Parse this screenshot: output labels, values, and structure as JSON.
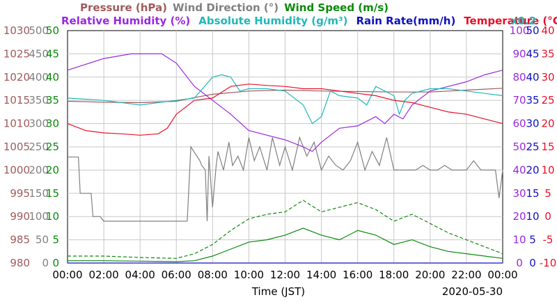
{
  "chart_data": {
    "type": "line",
    "legend_row1": [
      {
        "key": "pressure",
        "label": "Pressure (hPa)",
        "color": "#a05a5a"
      },
      {
        "key": "wind_direction",
        "label": "Wind Direction (°)",
        "color": "#808080"
      },
      {
        "key": "wind_speed",
        "label": "Wind Speed (m/s)",
        "color": "#0a8a0a"
      }
    ],
    "legend_row2": [
      {
        "key": "relative_humidity",
        "label": "Relative Humidity (%)",
        "color": "#9a28e0"
      },
      {
        "key": "absolute_humidity",
        "label": "Absolute Humidity (g/m³)",
        "color": "#20b8b8"
      },
      {
        "key": "rain_rate",
        "label": "Rain Rate(mm/h)",
        "color": "#1010c0"
      },
      {
        "key": "temperature",
        "label": "Temperature (°C)",
        "color": "#e8102a"
      }
    ],
    "abs_humidity_scale": "x0.2",
    "xlabel": "Time (JST)",
    "date": "2020-05-30",
    "x_ticks": [
      "00:00",
      "02:00",
      "04:00",
      "06:00",
      "08:00",
      "10:00",
      "12:00",
      "14:00",
      "16:00",
      "18:00",
      "20:00",
      "22:00",
      "00:00"
    ],
    "x_range_hours": [
      0,
      24
    ],
    "grid": true,
    "axes": {
      "pressure": {
        "ticks": [
          "980",
          "985",
          "990",
          "995",
          "1000",
          "1005",
          "1010",
          "1015",
          "1020",
          "1025",
          "1030"
        ],
        "range": [
          980,
          1030
        ],
        "color": "#a05a5a"
      },
      "wind_direction": {
        "ticks": [
          "0",
          "50",
          "100",
          "150",
          "200",
          "250",
          "300",
          "350",
          "400",
          "450",
          "500"
        ],
        "range": [
          0,
          500
        ],
        "color": "#808080"
      },
      "wind_speed": {
        "ticks": [
          "0",
          "5",
          "10",
          "15",
          "20",
          "25",
          "30",
          "35",
          "40",
          "45",
          "50"
        ],
        "range": [
          0,
          50
        ],
        "color": "#0a8a0a"
      },
      "relative_humidity": {
        "ticks": [
          "0",
          "10",
          "20",
          "30",
          "40",
          "50",
          "60",
          "70",
          "80",
          "90",
          "100"
        ],
        "range": [
          0,
          100
        ],
        "color": "#9a28e0"
      },
      "rain_rate": {
        "ticks": [
          "0",
          "5",
          "10",
          "15",
          "20",
          "25",
          "30",
          "35",
          "40",
          "45",
          "50"
        ],
        "range": [
          0,
          50
        ],
        "color": "#1010c0"
      },
      "temperature": {
        "ticks": [
          "-10",
          "-5",
          "0",
          "5",
          "10",
          "15",
          "20",
          "25",
          "30",
          "35",
          "40"
        ],
        "range": [
          -10,
          40
        ],
        "color": "#e8102a"
      }
    },
    "series": [
      {
        "key": "pressure",
        "color": "#a05a5a",
        "x": [
          0,
          2,
          4,
          6,
          7,
          8,
          10,
          12,
          14,
          16,
          18,
          20,
          22,
          24
        ],
        "y": [
          1014.8,
          1014.6,
          1014.5,
          1014.8,
          1015.6,
          1016.3,
          1017,
          1017.2,
          1017,
          1016.9,
          1016.8,
          1016.8,
          1017.2,
          1017.6
        ]
      },
      {
        "key": "wind_direction",
        "color": "#808080",
        "x": [
          0,
          0.6,
          0.7,
          1.3,
          1.4,
          1.8,
          2,
          4,
          6,
          6.6,
          6.8,
          7.3,
          7.4,
          7.6,
          7.7,
          7.8,
          8.0,
          8.2,
          8.3,
          8.6,
          8.9,
          9.1,
          9.4,
          9.7,
          10.0,
          10.3,
          10.6,
          11.0,
          11.3,
          11.7,
          12.0,
          12.4,
          12.8,
          13.2,
          13.6,
          14.0,
          14.4,
          14.8,
          15.2,
          15.6,
          16.0,
          16.4,
          16.8,
          17.2,
          17.6,
          18.0,
          18.4,
          18.8,
          19.2,
          19.6,
          20.0,
          20.4,
          20.8,
          21.2,
          21.6,
          22.0,
          22.4,
          22.8,
          23.2,
          23.6,
          23.8,
          24
        ],
        "y": [
          228,
          228,
          150,
          150,
          100,
          100,
          90,
          90,
          90,
          90,
          250,
          220,
          210,
          200,
          90,
          230,
          120,
          210,
          240,
          200,
          260,
          210,
          230,
          200,
          270,
          220,
          250,
          200,
          270,
          210,
          250,
          200,
          270,
          230,
          260,
          200,
          230,
          210,
          200,
          220,
          260,
          200,
          240,
          210,
          270,
          200,
          200,
          200,
          200,
          210,
          200,
          200,
          210,
          200,
          200,
          200,
          220,
          200,
          200,
          200,
          140,
          200
        ]
      },
      {
        "key": "wind_speed",
        "color": "#0a8a0a",
        "x": [
          0,
          2,
          4,
          6,
          7,
          8,
          9,
          10,
          11,
          12,
          13,
          14,
          15,
          16,
          17,
          18,
          19,
          20,
          21,
          22,
          23,
          24
        ],
        "y": [
          0.5,
          0.5,
          0.4,
          0.3,
          0.5,
          1.5,
          3,
          4.5,
          5,
          6,
          7.5,
          6,
          5,
          7,
          6,
          4,
          5,
          3.5,
          2.5,
          2,
          1.5,
          1
        ]
      },
      {
        "key": "wind_gust",
        "color": "#0a8a0a",
        "dashed": true,
        "x": [
          0,
          2,
          4,
          6,
          7,
          8,
          9,
          10,
          11,
          12,
          13,
          14,
          15,
          16,
          17,
          18,
          19,
          20,
          21,
          22,
          23,
          24
        ],
        "y": [
          1.5,
          1.5,
          1.2,
          1,
          2,
          4,
          7,
          9.5,
          10.5,
          11,
          13.5,
          11,
          12,
          13,
          11.5,
          9,
          10.5,
          8.5,
          6.5,
          5,
          3.5,
          2
        ]
      },
      {
        "key": "relative_humidity",
        "color": "#9a28e0",
        "x": [
          0,
          2,
          3.5,
          5.2,
          6,
          7,
          8,
          9,
          10,
          11,
          12,
          13,
          13.5,
          14,
          15,
          16,
          17,
          17.5,
          18,
          18.5,
          19,
          20,
          21,
          22,
          23,
          24
        ],
        "y": [
          83,
          88,
          90,
          90,
          86,
          76,
          70,
          64,
          57,
          55,
          53,
          50,
          48,
          52,
          58,
          59,
          63,
          60,
          64,
          62,
          68,
          74,
          76,
          78,
          81,
          83
        ]
      },
      {
        "key": "absolute_humidity",
        "color": "#20b8b8",
        "x": [
          0,
          2,
          4,
          6,
          7,
          8,
          8.5,
          9,
          9.5,
          10,
          11,
          12,
          13,
          13.5,
          14,
          14.5,
          15,
          16,
          16.5,
          17,
          18,
          18.3,
          18.6,
          19,
          20,
          21,
          22,
          23,
          24
        ],
        "y": [
          71,
          70,
          68,
          70,
          71,
          80,
          81,
          80,
          74,
          75,
          75,
          74,
          68,
          60,
          63,
          74,
          72,
          71,
          68,
          76,
          72,
          64,
          70,
          73,
          75,
          75,
          74,
          73,
          72
        ]
      },
      {
        "key": "temperature",
        "color": "#e8102a",
        "x": [
          0,
          1,
          2,
          3,
          4,
          5,
          5.5,
          6,
          7,
          8,
          9,
          10,
          11,
          12,
          13,
          14,
          15,
          16,
          17,
          18,
          19,
          20,
          21,
          22,
          23,
          24
        ],
        "y": [
          20,
          18.5,
          18,
          17.8,
          17.5,
          17.8,
          19,
          22,
          25,
          25.5,
          28,
          28.5,
          28.2,
          28,
          27.5,
          27.5,
          27,
          26.5,
          26,
          25,
          24.5,
          23.5,
          22.5,
          22,
          21,
          20
        ]
      },
      {
        "key": "rain_rate",
        "color": "#1010c0",
        "x": [
          0,
          24
        ],
        "y": [
          0,
          0
        ]
      }
    ]
  }
}
